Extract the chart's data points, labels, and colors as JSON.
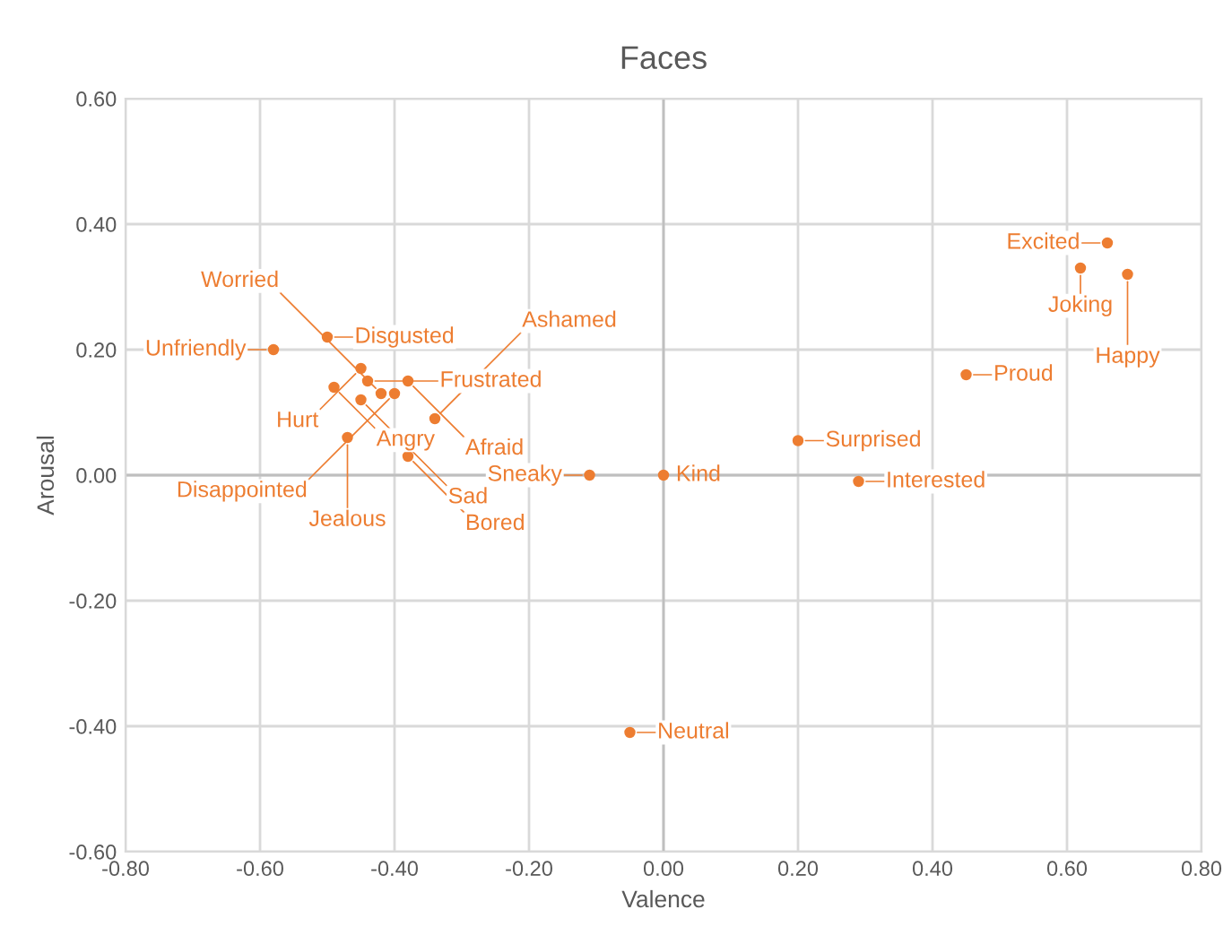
{
  "chart_data": {
    "type": "scatter",
    "title": "Faces",
    "xlabel": "Valence",
    "ylabel": "Arousal",
    "marker": "circle",
    "grid": true,
    "xlim": [
      -0.8,
      0.8
    ],
    "ylim": [
      -0.6,
      0.6
    ],
    "xticks": [
      {
        "value": -0.8,
        "label": "-0.80"
      },
      {
        "value": -0.6,
        "label": "-0.60"
      },
      {
        "value": -0.4,
        "label": "-0.40"
      },
      {
        "value": -0.2,
        "label": "-0.20"
      },
      {
        "value": 0,
        "label": "0.00"
      },
      {
        "value": 0.2,
        "label": "0.20"
      },
      {
        "value": 0.4,
        "label": "0.40"
      },
      {
        "value": 0.6,
        "label": "0.60"
      },
      {
        "value": 0.8,
        "label": "0.80"
      }
    ],
    "yticks": [
      {
        "value": -0.6,
        "label": "-0.60"
      },
      {
        "value": -0.4,
        "label": "-0.40"
      },
      {
        "value": -0.2,
        "label": "-0.20"
      },
      {
        "value": 0,
        "label": "0.00"
      },
      {
        "value": 0.2,
        "label": "0.20"
      },
      {
        "value": 0.4,
        "label": "0.40"
      },
      {
        "value": 0.6,
        "label": "0.60"
      }
    ],
    "series": [
      {
        "color": "#ed7d31",
        "x": [
          0.66,
          0.62,
          0.69,
          0.45,
          0.2,
          0.29,
          0.0,
          -0.11,
          -0.05,
          -0.5,
          -0.58,
          -0.45,
          -0.49,
          -0.44,
          -0.38,
          -0.4,
          -0.42,
          -0.45,
          -0.34,
          -0.47,
          -0.38
        ],
        "values": [
          0.37,
          0.33,
          0.32,
          0.16,
          0.055,
          -0.01,
          0.0,
          0.0,
          -0.41,
          0.22,
          0.2,
          0.17,
          0.14,
          0.15,
          0.15,
          0.13,
          0.13,
          0.12,
          0.09,
          0.06,
          0.03
        ],
        "value_labels": [
          "Excited",
          "Joking",
          "Happy",
          "Proud",
          "Surprised",
          "Interested",
          "Kind",
          "Sneaky",
          "Neutral",
          "Disgusted",
          "Unfriendly",
          "Hurt",
          "Angry",
          "Frustrated",
          "Afraid",
          "Disappointed",
          "Worried",
          "Sad",
          "Ashamed",
          "Jealous",
          "Bored"
        ]
      }
    ]
  }
}
